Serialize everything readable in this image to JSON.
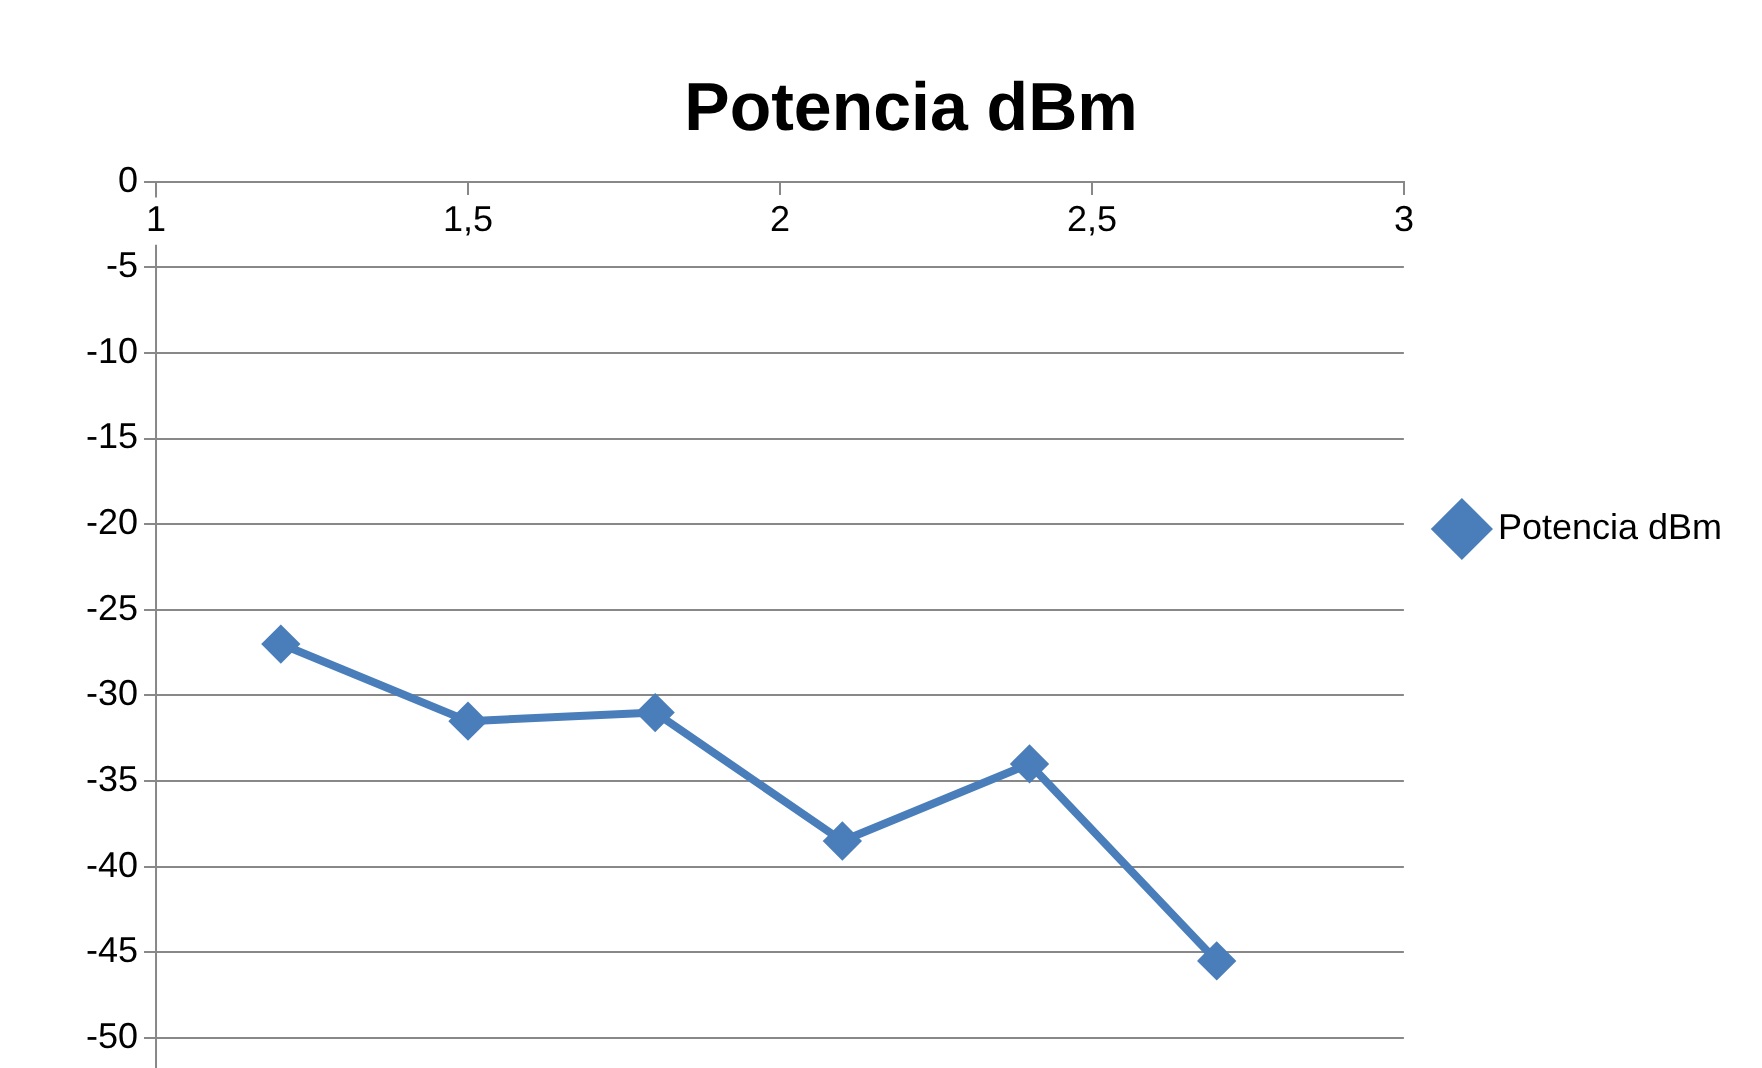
{
  "chart_data": {
    "type": "line",
    "title": "Potencia dBm",
    "x": [
      1.2,
      1.5,
      1.8,
      2.1,
      2.4,
      2.7
    ],
    "series": [
      {
        "name": "Potencia dBm",
        "color": "#4a7ebb",
        "values": [
          -27,
          -31.5,
          -31,
          -38.5,
          -34,
          -45.5
        ]
      }
    ],
    "xlim": [
      1,
      3
    ],
    "xticks": [
      1,
      {
        "value": 1.5,
        "label": "1,5"
      },
      2,
      {
        "value": 2.5,
        "label": "2,5"
      },
      3
    ],
    "ylim": [
      -50,
      0
    ],
    "yticks": [
      -50,
      -45,
      -40,
      -35,
      -30,
      -25,
      -20,
      -15,
      -10,
      -5,
      0
    ],
    "grid": "y",
    "legend": "right",
    "marker": "diamond",
    "line_style": "solid"
  }
}
